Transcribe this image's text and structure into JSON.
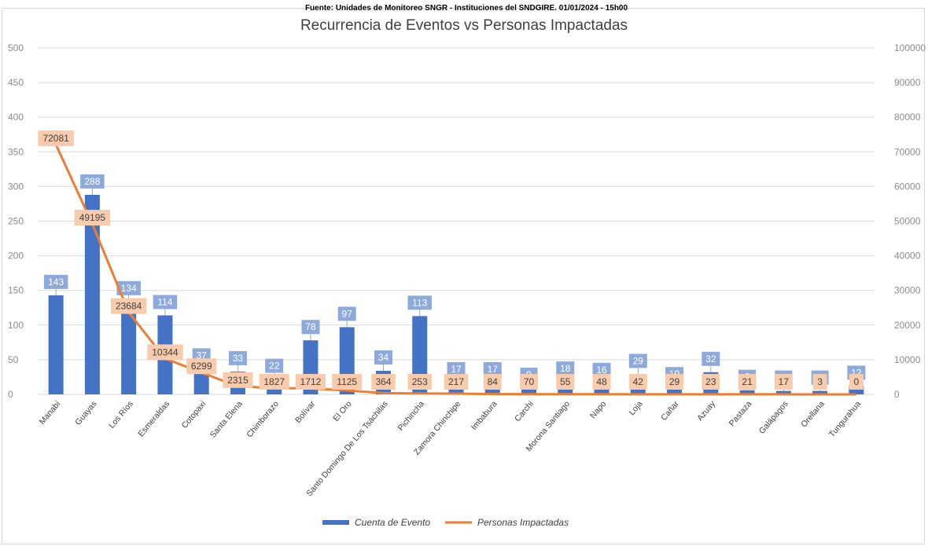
{
  "source_note": "Fuente: Unidades de Monitoreo SNGR - Instituciones del SNDGIRE. 01/01/2024 - 15h00",
  "colors": {
    "bars": "#4472c4",
    "bar_labels": "#8eaadb",
    "line": "#ed7d31",
    "line_labels": "#f8cbad",
    "grid": "#d9d9d9"
  },
  "chart_data": {
    "type": "bar",
    "title": "Recurrencia de Eventos vs Personas Impactadas",
    "categories": [
      "Manabí",
      "Guayas",
      "Los Ríos",
      "Esmeraldas",
      "Cotopaxi",
      "Santa Elena",
      "Chimborazo",
      "Bolívar",
      "El Oro",
      "Santo Domingo De Los Tsáchilas",
      "Pichincha",
      "Zamora Chinchipe",
      "Imbabura",
      "Carchi",
      "Morona Santiago",
      "Napo",
      "Loja",
      "Cañar",
      "Azuay",
      "Pastaza",
      "Galápagos",
      "Orellana",
      "Tungurahua"
    ],
    "series": [
      {
        "name": "Cuenta de Evento",
        "type": "bar",
        "axis": "left",
        "values": [
          143,
          288,
          134,
          114,
          37,
          33,
          22,
          78,
          97,
          34,
          113,
          17,
          17,
          9,
          18,
          16,
          29,
          10,
          32,
          6,
          5,
          5,
          12
        ],
        "labels": [
          "143",
          "288",
          "134",
          "114",
          "37",
          "33",
          "22",
          "78",
          "97",
          "34",
          "113",
          "17",
          "17",
          "9",
          "18",
          "16",
          "29",
          "10",
          "32",
          "6",
          "5",
          "5",
          "12"
        ]
      },
      {
        "name": "Personas Impactadas",
        "type": "line",
        "axis": "right",
        "values": [
          72081,
          49195,
          23684,
          10344,
          6299,
          2315,
          1827,
          1712,
          1125,
          364,
          253,
          217,
          84,
          70,
          55,
          48,
          42,
          29,
          23,
          21,
          17,
          3,
          0
        ]
      }
    ],
    "y_left": {
      "min": 0,
      "max": 500,
      "ticks": [
        0,
        50,
        100,
        150,
        200,
        250,
        300,
        350,
        400,
        450,
        500
      ]
    },
    "y_right": {
      "min": 0,
      "max": 100000,
      "ticks": [
        0,
        10000,
        20000,
        30000,
        40000,
        50000,
        60000,
        70000,
        80000,
        90000,
        100000
      ]
    },
    "grid": true,
    "legend": "bottom"
  }
}
